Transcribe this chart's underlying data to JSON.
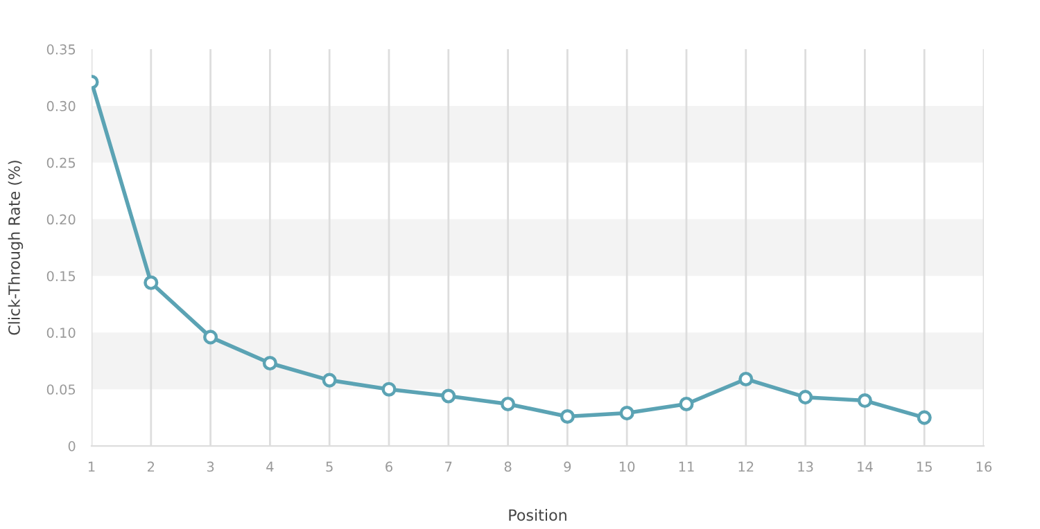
{
  "chart_data": {
    "type": "line",
    "xlabel": "Position",
    "ylabel": "Click-Through Rate (%)",
    "x": [
      1,
      2,
      3,
      4,
      5,
      6,
      7,
      8,
      9,
      10,
      11,
      12,
      13,
      14,
      15
    ],
    "series": [
      {
        "color": "#5ba3b4",
        "values": [
          0.321,
          0.144,
          0.096,
          0.073,
          0.058,
          0.05,
          0.044,
          0.037,
          0.026,
          0.029,
          0.037,
          0.059,
          0.043,
          0.04,
          0.025
        ]
      }
    ],
    "xlim": [
      1,
      16
    ],
    "xticks": [
      1,
      2,
      3,
      4,
      5,
      6,
      7,
      8,
      9,
      10,
      11,
      12,
      13,
      14,
      15,
      16
    ],
    "ylim": [
      0,
      0.35
    ],
    "yticks": [
      {
        "value": 0,
        "label": "0"
      },
      {
        "value": 0.05,
        "label": "0.05"
      },
      {
        "value": 0.1,
        "label": "0.10"
      },
      {
        "value": 0.15,
        "label": "0.15"
      },
      {
        "value": 0.2,
        "label": "0.20"
      },
      {
        "value": 0.25,
        "label": "0.25"
      },
      {
        "value": 0.3,
        "label": "0.30"
      },
      {
        "value": 0.35,
        "label": "0.35"
      }
    ],
    "bands": [
      {
        "axis": "y",
        "from": 0.05,
        "to": 0.1,
        "color": "#f3f3f3"
      },
      {
        "axis": "y",
        "from": 0.15,
        "to": 0.2,
        "color": "#f3f3f3"
      },
      {
        "axis": "y",
        "from": 0.25,
        "to": 0.3,
        "color": "#f3f3f3"
      }
    ],
    "grid": "x",
    "marker": "circle",
    "line_style": "solid",
    "legend": false
  }
}
